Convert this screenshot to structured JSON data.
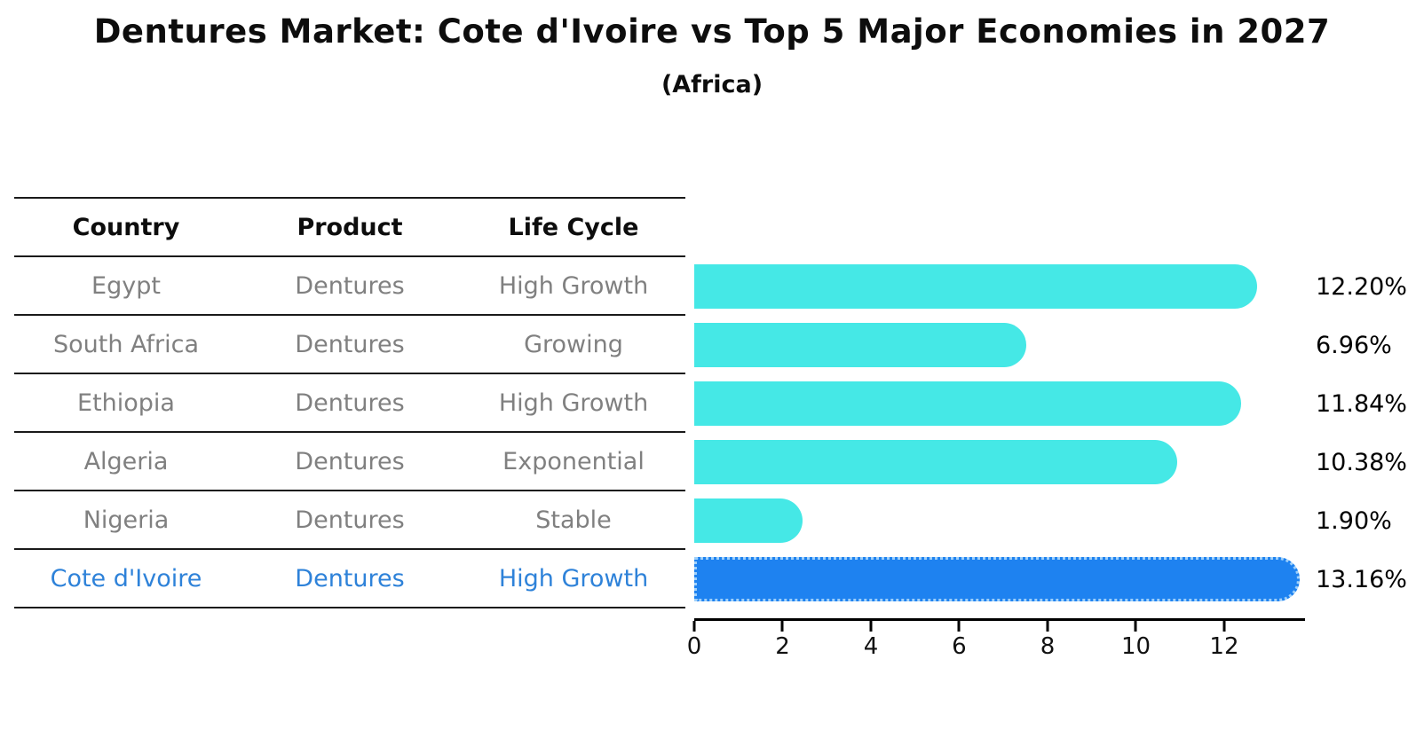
{
  "title": "Dentures Market: Cote d'Ivoire vs Top 5 Major Economies in 2027",
  "subtitle": "(Africa)",
  "table": {
    "columns": [
      "Country",
      "Product",
      "Life Cycle"
    ],
    "rows": [
      {
        "country": "Egypt",
        "product": "Dentures",
        "life_cycle": "High Growth",
        "highlight": false
      },
      {
        "country": "South Africa",
        "product": "Dentures",
        "life_cycle": "Growing",
        "highlight": false
      },
      {
        "country": "Ethiopia",
        "product": "Dentures",
        "life_cycle": "High Growth",
        "highlight": false
      },
      {
        "country": "Algeria",
        "product": "Dentures",
        "life_cycle": "Exponential",
        "highlight": false
      },
      {
        "country": "Nigeria",
        "product": "Dentures",
        "life_cycle": "Stable",
        "highlight": false
      },
      {
        "country": "Cote d'Ivoire",
        "product": "Dentures",
        "life_cycle": "High Growth",
        "highlight": true
      }
    ]
  },
  "chart_data": {
    "type": "bar",
    "orientation": "horizontal",
    "title": "Dentures Market: Cote d'Ivoire vs Top 5 Major Economies in 2027",
    "subtitle": "(Africa)",
    "categories": [
      "Egypt",
      "South Africa",
      "Ethiopia",
      "Algeria",
      "Nigeria",
      "Cote d'Ivoire"
    ],
    "values": [
      12.2,
      6.96,
      11.84,
      10.38,
      1.9,
      13.16
    ],
    "value_labels": [
      "12.20%",
      "6.96%",
      "11.84%",
      "10.38%",
      "1.90%",
      "13.16%"
    ],
    "highlight_index": 5,
    "x_ticks": [
      0,
      2,
      4,
      6,
      8,
      10,
      12
    ],
    "xlim": [
      0,
      13.83
    ],
    "grid": false,
    "legend": "none",
    "bar_color": "#45e8e6",
    "highlight_color": "#1e82f0",
    "highlight_dot_color": "#9fd0fa"
  },
  "colors": {
    "row_text": "#808080",
    "highlight_text": "#2e82d9",
    "header_text": "#0d0d0d",
    "axis": "#000000"
  }
}
